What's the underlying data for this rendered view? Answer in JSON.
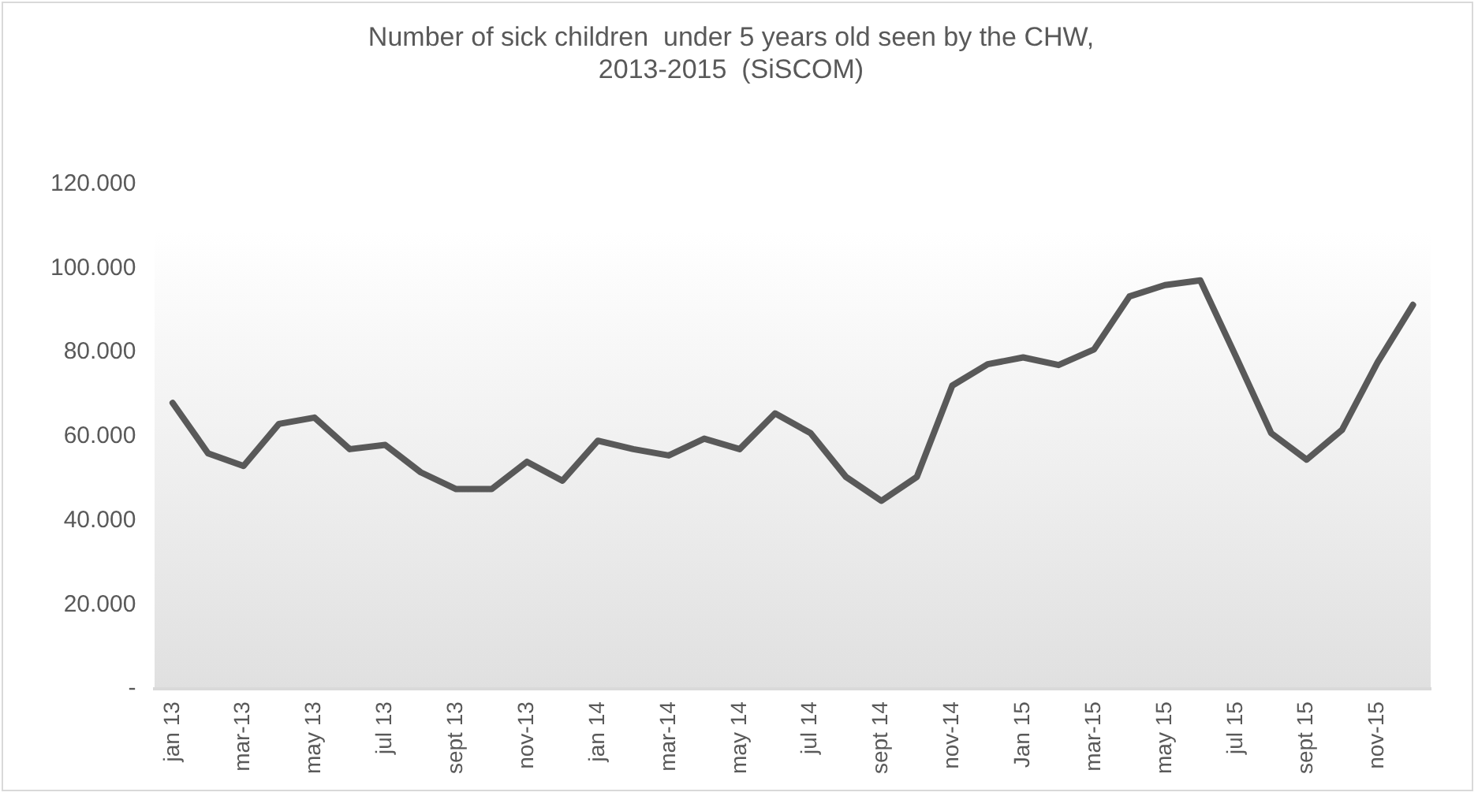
{
  "chart_data": {
    "type": "line",
    "title": "Number of sick children  under 5 years old seen by the CHW,\n2013-2015  (SiSCOM)",
    "categories": [
      "jan 13",
      null,
      "mar-13",
      null,
      "may 13",
      null,
      "jul 13",
      null,
      "sept 13",
      null,
      "nov-13",
      null,
      "jan 14",
      null,
      "mar-14",
      null,
      "may 14",
      null,
      "jul 14",
      null,
      "sept 14",
      null,
      "nov-14",
      null,
      "Jan 15",
      null,
      "mar-15",
      null,
      "may 15",
      null,
      "jul 15",
      null,
      "sept 15",
      null,
      "nov-15",
      null
    ],
    "series": [
      {
        "color": "#595959",
        "values": [
          68000,
          56000,
          53000,
          63000,
          64500,
          57000,
          58000,
          51500,
          47500,
          47500,
          54000,
          49500,
          59000,
          57000,
          55500,
          59500,
          57000,
          65500,
          60800,
          50400,
          44700,
          50400,
          72100,
          77200,
          78800,
          77000,
          80700,
          93300,
          96000,
          97100,
          79100,
          60800,
          54500,
          61600,
          77600,
          91300
        ]
      }
    ],
    "ylim": [
      0,
      120000
    ],
    "yticks": [
      {
        "value": 0,
        "label": "-"
      },
      {
        "value": 20000,
        "label": "20.000"
      },
      {
        "value": 40000,
        "label": "40.000"
      },
      {
        "value": 60000,
        "label": "60.000"
      },
      {
        "value": 80000,
        "label": "80.000"
      },
      {
        "value": 100000,
        "label": "100.000"
      },
      {
        "value": 120000,
        "label": "120.000"
      }
    ],
    "grid": false,
    "legend": false,
    "marker": "none",
    "line_style": "solid"
  }
}
